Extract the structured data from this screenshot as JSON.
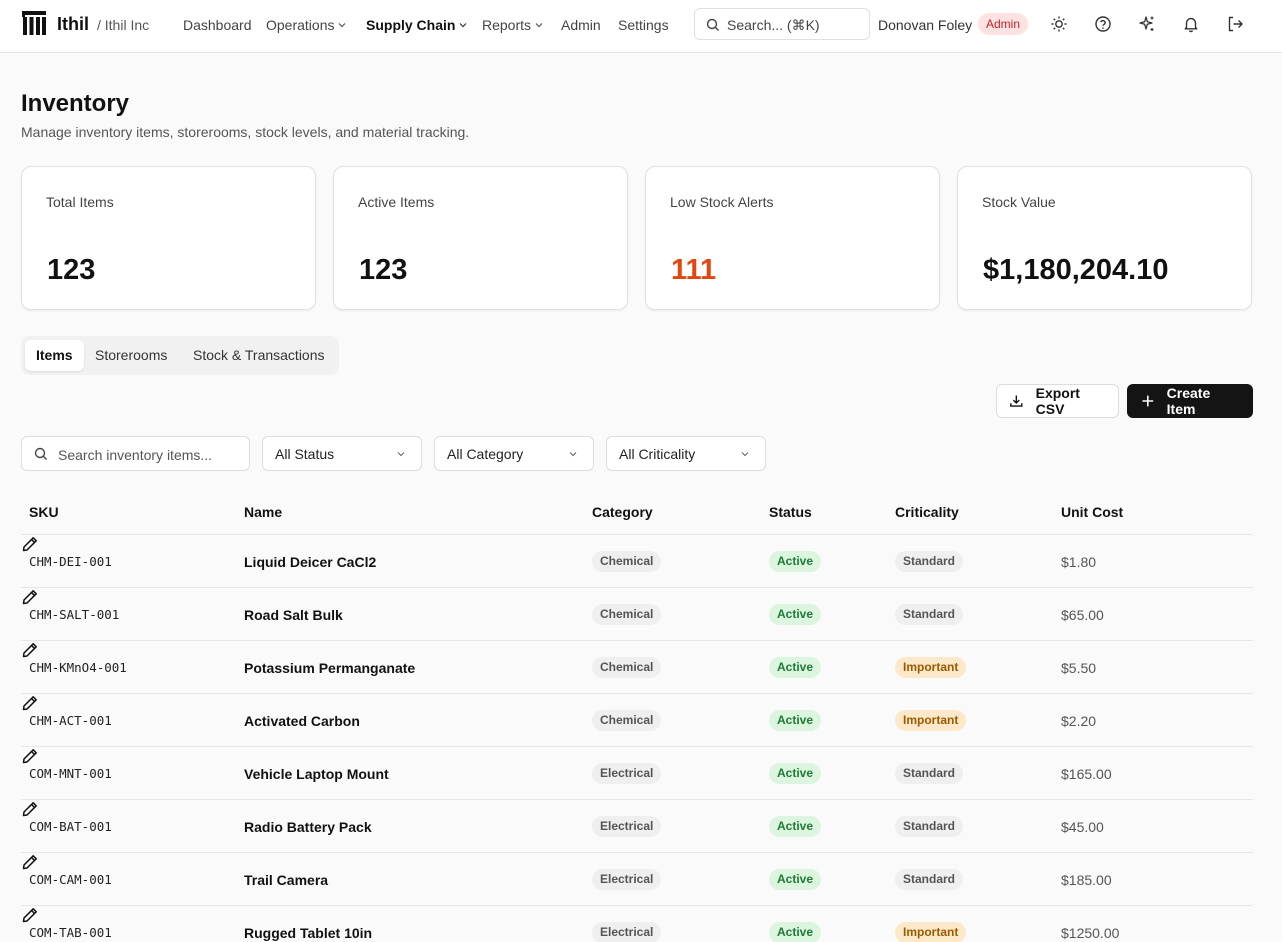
{
  "header": {
    "brand": "Ithil",
    "org": "/ Ithil Inc",
    "nav": [
      {
        "label": "Dashboard"
      },
      {
        "label": "Operations"
      },
      {
        "label": "Supply Chain"
      },
      {
        "label": "Reports"
      },
      {
        "label": "Admin"
      },
      {
        "label": "Settings"
      }
    ],
    "search_placeholder": "Search... (⌘K)",
    "user": "Donovan Foley",
    "role": "Admin",
    "icons": [
      "sun-icon",
      "help-icon",
      "sparkles-icon",
      "bell-icon",
      "logout-icon"
    ]
  },
  "page": {
    "title": "Inventory",
    "subtitle": "Manage inventory items, storerooms, stock levels, and material tracking."
  },
  "stats": [
    {
      "label": "Total Items",
      "value": "123"
    },
    {
      "label": "Active Items",
      "value": "123"
    },
    {
      "label": "Low Stock Alerts",
      "value": "111",
      "color": "#e0480f"
    },
    {
      "label": "Stock Value",
      "value": "$1,180,204.10"
    }
  ],
  "tabs": [
    {
      "label": "Items",
      "active": true
    },
    {
      "label": "Storerooms"
    },
    {
      "label": "Stock & Transactions"
    }
  ],
  "actions": {
    "export": "Export CSV",
    "create": "Create Item"
  },
  "filters": {
    "search_placeholder": "Search inventory items...",
    "status": "All Status",
    "category": "All Category",
    "criticality": "All Criticality"
  },
  "table": {
    "columns": [
      "SKU",
      "Name",
      "Category",
      "Status",
      "Criticality",
      "Unit Cost"
    ],
    "rows": [
      {
        "sku": "CHM-DEI-001",
        "name": "Liquid Deicer CaCl2",
        "category": "Chemical",
        "status": "Active",
        "criticality": "Standard",
        "cost": "$1.80"
      },
      {
        "sku": "CHM-SALT-001",
        "name": "Road Salt Bulk",
        "category": "Chemical",
        "status": "Active",
        "criticality": "Standard",
        "cost": "$65.00"
      },
      {
        "sku": "CHM-KMnO4-001",
        "name": "Potassium Permanganate",
        "category": "Chemical",
        "status": "Active",
        "criticality": "Important",
        "cost": "$5.50"
      },
      {
        "sku": "CHM-ACT-001",
        "name": "Activated Carbon",
        "category": "Chemical",
        "status": "Active",
        "criticality": "Important",
        "cost": "$2.20"
      },
      {
        "sku": "COM-MNT-001",
        "name": "Vehicle Laptop Mount",
        "category": "Electrical",
        "status": "Active",
        "criticality": "Standard",
        "cost": "$165.00"
      },
      {
        "sku": "COM-BAT-001",
        "name": "Radio Battery Pack",
        "category": "Electrical",
        "status": "Active",
        "criticality": "Standard",
        "cost": "$45.00"
      },
      {
        "sku": "COM-CAM-001",
        "name": "Trail Camera",
        "category": "Electrical",
        "status": "Active",
        "criticality": "Standard",
        "cost": "$185.00"
      },
      {
        "sku": "COM-TAB-001",
        "name": "Rugged Tablet 10in",
        "category": "Electrical",
        "status": "Active",
        "criticality": "Important",
        "cost": "$1250.00"
      }
    ]
  }
}
